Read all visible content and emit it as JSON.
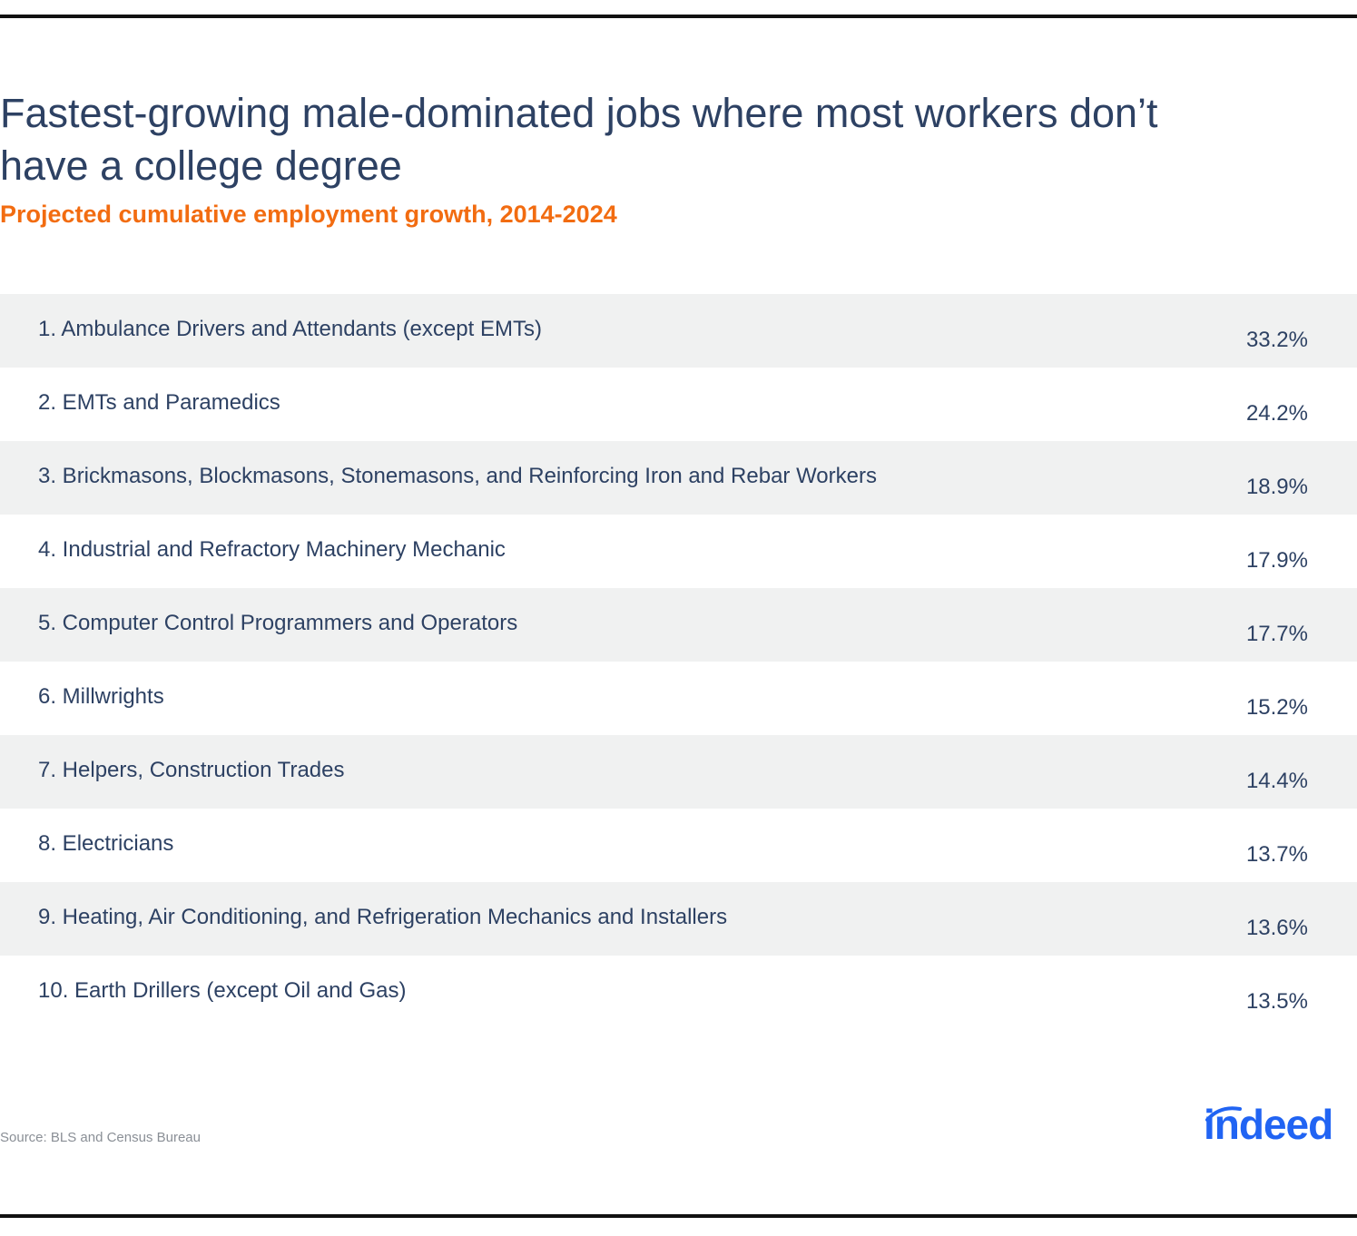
{
  "chart_data": {
    "type": "table",
    "title": "Fastest-growing male-dominated jobs where most workers don’t have a college degree",
    "subtitle": "Projected cumulative employment growth, 2014-2024",
    "rows": [
      {
        "label": "1. Ambulance Drivers and Attendants (except EMTs)",
        "value": "33.2%"
      },
      {
        "label": "2. EMTs and Paramedics",
        "value": "24.2%"
      },
      {
        "label": "3. Brickmasons, Blockmasons, Stonemasons, and Reinforcing Iron and Rebar Workers",
        "value": "18.9%"
      },
      {
        "label": "4. Industrial and Refractory Machinery Mechanic",
        "value": "17.9%"
      },
      {
        "label": "5. Computer Control Programmers and Operators",
        "value": "17.7%"
      },
      {
        "label": "6. Millwrights",
        "value": "15.2%"
      },
      {
        "label": "7. Helpers, Construction Trades",
        "value": "14.4%"
      },
      {
        "label": "8. Electricians",
        "value": "13.7%"
      },
      {
        "label": "9. Heating, Air Conditioning, and Refrigeration Mechanics and Installers",
        "value": "13.6%"
      },
      {
        "label": "10. Earth Drillers (except Oil and Gas)",
        "value": "13.5%"
      }
    ],
    "source": "Source: BLS and Census Bureau"
  },
  "logo": {
    "text": "indeed",
    "color": "#2164f3"
  },
  "colors": {
    "title": "#2d4163",
    "subtitle": "#f26c11",
    "row_shade": "#f0f1f1"
  }
}
